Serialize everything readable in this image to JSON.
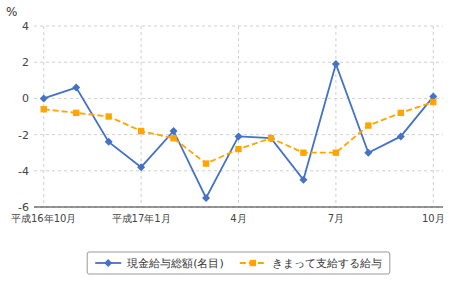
{
  "chart_data": {
    "type": "line",
    "y_label": "%",
    "categories": [
      "平成16年10月",
      null,
      null,
      "平成17年1月",
      null,
      null,
      "4月",
      null,
      null,
      "7月",
      null,
      null,
      "10月"
    ],
    "series": [
      {
        "name": "現金給与総額(名目)",
        "color": "#4472c4",
        "marker": "diamond",
        "line_style": "solid",
        "values": [
          0.0,
          0.6,
          -2.4,
          -3.8,
          -1.8,
          -5.5,
          -2.1,
          -2.2,
          -4.5,
          1.9,
          -3.0,
          -2.1,
          0.1
        ]
      },
      {
        "name": "きまって支給する給与",
        "color": "#ffa500",
        "marker": "square",
        "line_style": "dashed",
        "values": [
          -0.6,
          -0.8,
          -1.0,
          -1.8,
          -2.2,
          -3.6,
          -2.8,
          -2.2,
          -3.0,
          -3.0,
          -1.5,
          -0.8,
          -0.2
        ]
      }
    ],
    "ylim": [
      -6,
      4
    ],
    "yticks": [
      -6,
      -4,
      -2,
      0,
      2,
      4
    ],
    "grid": true,
    "legend": "bottom"
  }
}
